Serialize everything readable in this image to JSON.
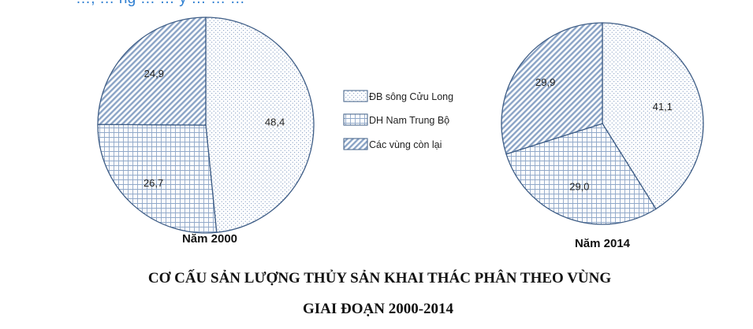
{
  "header_partial_text": "…, … ng … … y … … …",
  "chart_data": [
    {
      "type": "pie",
      "caption": "Năm 2000",
      "unit": "%",
      "categories": [
        "ĐB sông Cửu Long",
        "DH Nam Trung Bộ",
        "Các vùng còn lại"
      ],
      "values": [
        48.4,
        26.7,
        24.9
      ],
      "value_labels": [
        "48,4",
        "26,7",
        "24,9"
      ]
    },
    {
      "type": "pie",
      "caption": "Năm 2014",
      "unit": "%",
      "categories": [
        "ĐB sông Cửu Long",
        "DH Nam Trung Bộ",
        "Các vùng còn lại"
      ],
      "values": [
        41.1,
        29.0,
        29.9
      ],
      "value_labels": [
        "41,1",
        "29,0",
        "29,9"
      ]
    }
  ],
  "legend": {
    "items": [
      {
        "label": "ĐB sông Cửu Long",
        "pattern": "dots"
      },
      {
        "label": "DH Nam Trung Bộ",
        "pattern": "grid"
      },
      {
        "label": "Các vùng  còn lại",
        "pattern": "hatch"
      }
    ]
  },
  "title": {
    "line1": "CƠ CẤU SẢN LƯỢNG THỦY SẢN KHAI THÁC PHÂN THEO VÙNG",
    "line2": "GIAI ĐOẠN 2000-2014"
  },
  "colors": {
    "pie_stroke": "#3e5d86",
    "hatch_fill": "#9bb3d1",
    "pattern_line": "#5b7cae",
    "title": "#111111"
  }
}
